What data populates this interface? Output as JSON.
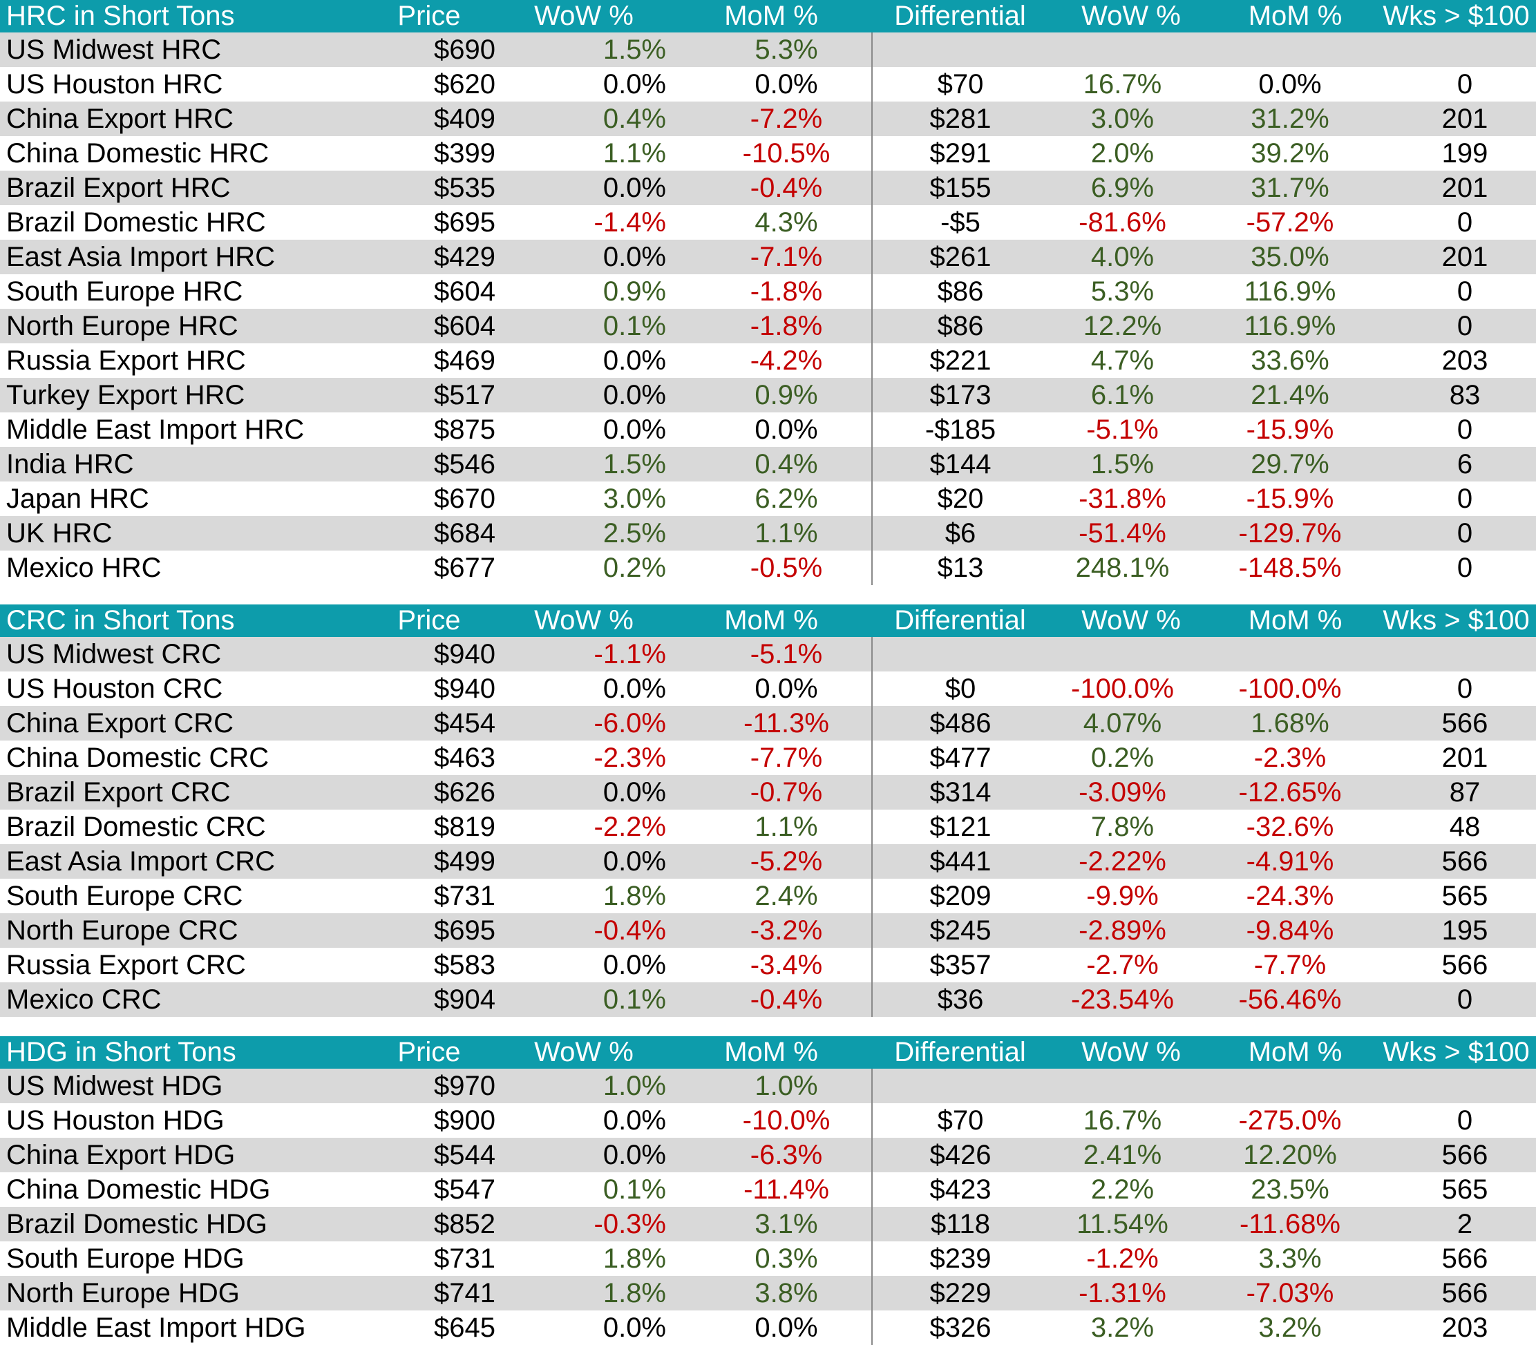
{
  "colors": {
    "header_bg": "#0D9CAB",
    "header_text": "#FFFFFF",
    "row_stripe": "#D9D9D9",
    "positive_text": "#3B5E23",
    "negative_text": "#C40000",
    "neutral_text": "#000000",
    "divider_line": "#8A8A8A"
  },
  "sections": [
    {
      "header": {
        "title": "HRC in Short Tons",
        "price": "Price",
        "wow": "WoW %",
        "mom": "MoM %",
        "differential": "Differential",
        "wow2": "WoW %",
        "mom2": "MoM %",
        "wks": "Wks > $100"
      },
      "rows": [
        {
          "label": "US Midwest HRC",
          "cells": [
            "$690",
            "1.5%",
            "5.3%",
            "",
            "",
            "",
            ""
          ]
        },
        {
          "label": "US Houston HRC",
          "cells": [
            "$620",
            "0.0%",
            "0.0%",
            "$70",
            "16.7%",
            "0.0%",
            "0"
          ]
        },
        {
          "label": "China Export HRC",
          "cells": [
            "$409",
            "0.4%",
            "-7.2%",
            "$281",
            "3.0%",
            "31.2%",
            "201"
          ]
        },
        {
          "label": "China Domestic HRC",
          "cells": [
            "$399",
            "1.1%",
            "-10.5%",
            "$291",
            "2.0%",
            "39.2%",
            "199"
          ]
        },
        {
          "label": "Brazil Export HRC",
          "cells": [
            "$535",
            "0.0%",
            "-0.4%",
            "$155",
            "6.9%",
            "31.7%",
            "201"
          ]
        },
        {
          "label": "Brazil Domestic HRC",
          "cells": [
            "$695",
            "-1.4%",
            "4.3%",
            "-$5",
            "-81.6%",
            "-57.2%",
            "0"
          ]
        },
        {
          "label": "East Asia Import HRC",
          "cells": [
            "$429",
            "0.0%",
            "-7.1%",
            "$261",
            "4.0%",
            "35.0%",
            "201"
          ]
        },
        {
          "label": "South Europe HRC",
          "cells": [
            "$604",
            "0.9%",
            "-1.8%",
            "$86",
            "5.3%",
            "116.9%",
            "0"
          ]
        },
        {
          "label": "North Europe HRC",
          "cells": [
            "$604",
            "0.1%",
            "-1.8%",
            "$86",
            "12.2%",
            "116.9%",
            "0"
          ]
        },
        {
          "label": "Russia Export HRC",
          "cells": [
            "$469",
            "0.0%",
            "-4.2%",
            "$221",
            "4.7%",
            "33.6%",
            "203"
          ]
        },
        {
          "label": "Turkey Export HRC",
          "cells": [
            "$517",
            "0.0%",
            "0.9%",
            "$173",
            "6.1%",
            "21.4%",
            "83"
          ]
        },
        {
          "label": "Middle East Import HRC",
          "cells": [
            "$875",
            "0.0%",
            "0.0%",
            "-$185",
            "-5.1%",
            "-15.9%",
            "0"
          ]
        },
        {
          "label": "India HRC",
          "cells": [
            "$546",
            "1.5%",
            "0.4%",
            "$144",
            "1.5%",
            "29.7%",
            "6"
          ]
        },
        {
          "label": "Japan HRC",
          "cells": [
            "$670",
            "3.0%",
            "6.2%",
            "$20",
            "-31.8%",
            "-15.9%",
            "0"
          ]
        },
        {
          "label": "UK HRC",
          "cells": [
            "$684",
            "2.5%",
            "1.1%",
            "$6",
            "-51.4%",
            "-129.7%",
            "0"
          ]
        },
        {
          "label": "Mexico HRC",
          "cells": [
            "$677",
            "0.2%",
            "-0.5%",
            "$13",
            "248.1%",
            "-148.5%",
            "0"
          ]
        }
      ]
    },
    {
      "header": {
        "title": "CRC in Short Tons",
        "price": "Price",
        "wow": "WoW %",
        "mom": "MoM %",
        "differential": "Differential",
        "wow2": "WoW %",
        "mom2": "MoM %",
        "wks": "Wks > $100"
      },
      "rows": [
        {
          "label": "US Midwest CRC",
          "cells": [
            "$940",
            "-1.1%",
            "-5.1%",
            "",
            "",
            "",
            ""
          ]
        },
        {
          "label": "US Houston CRC",
          "cells": [
            "$940",
            "0.0%",
            "0.0%",
            "$0",
            "-100.0%",
            "-100.0%",
            "0"
          ]
        },
        {
          "label": "China Export CRC",
          "cells": [
            "$454",
            "-6.0%",
            "-11.3%",
            "$486",
            "4.07%",
            "1.68%",
            "566"
          ]
        },
        {
          "label": "China Domestic CRC",
          "cells": [
            "$463",
            "-2.3%",
            "-7.7%",
            "$477",
            "0.2%",
            "-2.3%",
            "201"
          ]
        },
        {
          "label": "Brazil Export CRC",
          "cells": [
            "$626",
            "0.0%",
            "-0.7%",
            "$314",
            "-3.09%",
            "-12.65%",
            "87"
          ]
        },
        {
          "label": "Brazil Domestic CRC",
          "cells": [
            "$819",
            "-2.2%",
            "1.1%",
            "$121",
            "7.8%",
            "-32.6%",
            "48"
          ]
        },
        {
          "label": "East Asia Import CRC",
          "cells": [
            "$499",
            "0.0%",
            "-5.2%",
            "$441",
            "-2.22%",
            "-4.91%",
            "566"
          ]
        },
        {
          "label": "South Europe CRC",
          "cells": [
            "$731",
            "1.8%",
            "2.4%",
            "$209",
            "-9.9%",
            "-24.3%",
            "565"
          ]
        },
        {
          "label": "North Europe CRC",
          "cells": [
            "$695",
            "-0.4%",
            "-3.2%",
            "$245",
            "-2.89%",
            "-9.84%",
            "195"
          ]
        },
        {
          "label": "Russia Export CRC",
          "cells": [
            "$583",
            "0.0%",
            "-3.4%",
            "$357",
            "-2.7%",
            "-7.7%",
            "566"
          ]
        },
        {
          "label": "Mexico CRC",
          "cells": [
            "$904",
            "0.1%",
            "-0.4%",
            "$36",
            "-23.54%",
            "-56.46%",
            "0"
          ]
        }
      ]
    },
    {
      "header": {
        "title": "HDG in Short Tons",
        "price": "Price",
        "wow": "WoW %",
        "mom": "MoM %",
        "differential": "Differential",
        "wow2": "WoW %",
        "mom2": "MoM %",
        "wks": "Wks > $100"
      },
      "rows": [
        {
          "label": "US Midwest HDG",
          "cells": [
            "$970",
            "1.0%",
            "1.0%",
            "",
            "",
            "",
            ""
          ]
        },
        {
          "label": "US Houston HDG",
          "cells": [
            "$900",
            "0.0%",
            "-10.0%",
            "$70",
            "16.7%",
            "-275.0%",
            "0"
          ]
        },
        {
          "label": "China Export HDG",
          "cells": [
            "$544",
            "0.0%",
            "-6.3%",
            "$426",
            "2.41%",
            "12.20%",
            "566"
          ]
        },
        {
          "label": "China Domestic HDG",
          "cells": [
            "$547",
            "0.1%",
            "-11.4%",
            "$423",
            "2.2%",
            "23.5%",
            "565"
          ]
        },
        {
          "label": "Brazil Domestic HDG",
          "cells": [
            "$852",
            "-0.3%",
            "3.1%",
            "$118",
            "11.54%",
            "-11.68%",
            "2"
          ]
        },
        {
          "label": "South Europe HDG",
          "cells": [
            "$731",
            "1.8%",
            "0.3%",
            "$239",
            "-1.2%",
            "3.3%",
            "566"
          ]
        },
        {
          "label": "North Europe HDG",
          "cells": [
            "$741",
            "1.8%",
            "3.8%",
            "$229",
            "-1.31%",
            "-7.03%",
            "566"
          ]
        },
        {
          "label": "Middle East Import HDG",
          "cells": [
            "$645",
            "0.0%",
            "0.0%",
            "$326",
            "3.2%",
            "3.2%",
            "203"
          ]
        }
      ]
    }
  ]
}
